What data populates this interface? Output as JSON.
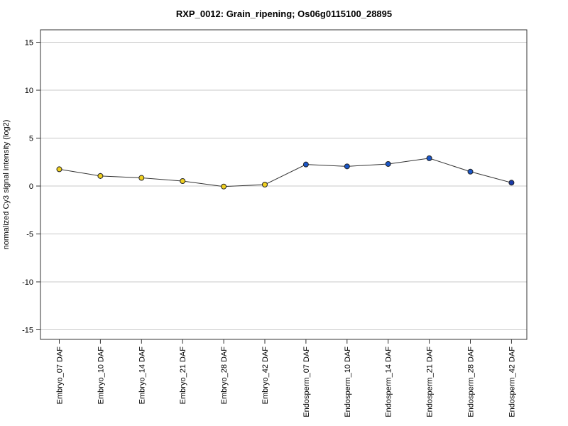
{
  "chart_data": {
    "type": "line",
    "title": "RXP_0012: Grain_ripening; Os06g0115100_28895",
    "xlabel": "",
    "ylabel": "normalized Cy3 signal intensity (log2)",
    "ylim": [
      -16,
      16.3
    ],
    "yticks": [
      -15,
      -10,
      -5,
      0,
      5,
      10,
      15
    ],
    "grid": true,
    "categories": [
      "Embryo_07 DAF",
      "Embryo_10 DAF",
      "Embryo_14 DAF",
      "Embryo_21 DAF",
      "Embryo_28 DAF",
      "Embryo_42 DAF",
      "Endosperm_07 DAF",
      "Endosperm_10 DAF",
      "Endosperm_14 DAF",
      "Endosperm_21 DAF",
      "Endosperm_28 DAF",
      "Endosperm_42 DAF"
    ],
    "series": [
      {
        "values": [
          1.75,
          1.05,
          0.85,
          0.52,
          -0.05,
          0.15,
          2.25,
          2.05,
          2.3,
          2.9,
          1.5,
          0.35
        ],
        "errors": [
          0.25,
          0.3,
          0.2,
          0.15,
          0.2,
          0.15,
          0.12,
          0.12,
          0.12,
          0.12,
          0.12,
          0.12
        ],
        "colors": [
          "#f0d020",
          "#f0d020",
          "#f0d020",
          "#f0d020",
          "#f0d020",
          "#f0d020",
          "#1a56c8",
          "#1a56c8",
          "#1a56c8",
          "#1a56c8",
          "#1a56c8",
          "#1a3aa8"
        ]
      }
    ]
  }
}
